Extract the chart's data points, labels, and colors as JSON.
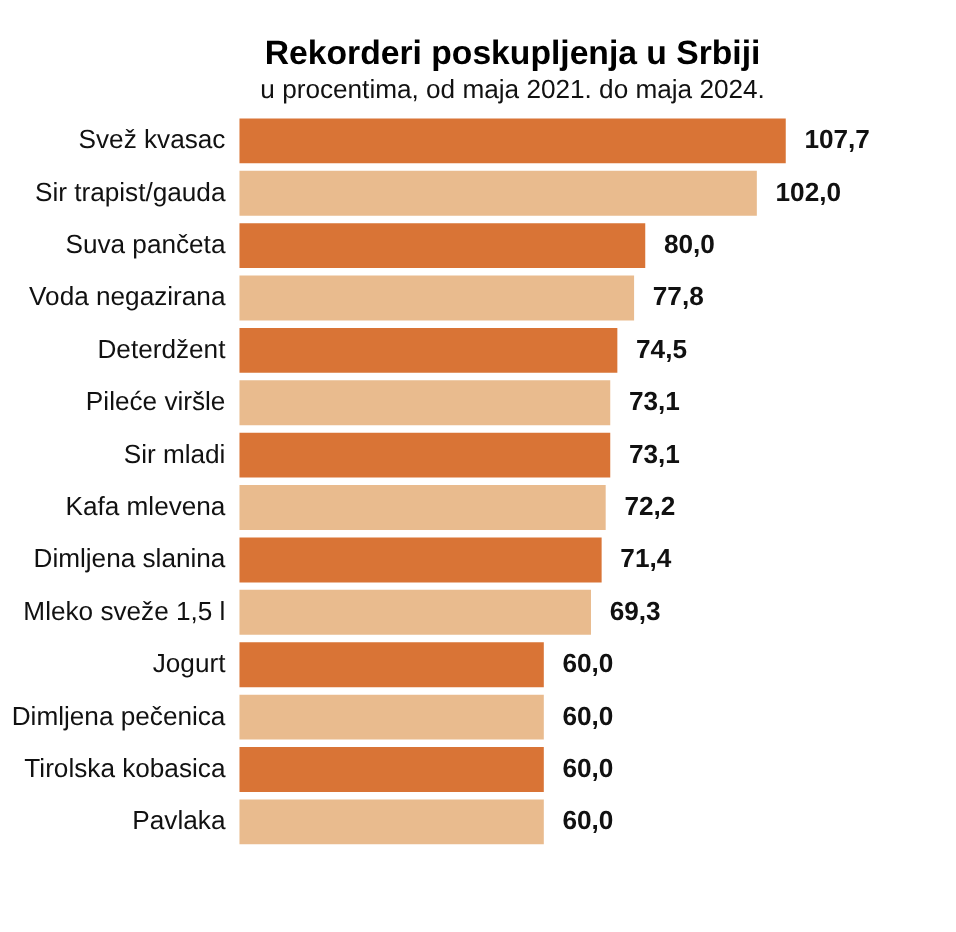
{
  "chart_data": {
    "type": "bar",
    "orientation": "horizontal",
    "title": "Rekorderi poskupljenja u Srbiji",
    "subtitle": "u procentima, od maja 2021. do maja 2024.",
    "categories": [
      "Svež kvasac",
      "Sir trapist/gauda",
      "Suva pančeta",
      "Voda negazirana",
      "Deterdžent",
      "Pileće viršle",
      "Sir mladi",
      "Kafa mlevena",
      "Dimljena slanina",
      "Mleko sveže 1,5 l",
      "Jogurt",
      "Dimljena pečenica",
      "Tirolska kobasica",
      "Pavlaka"
    ],
    "values": [
      107.7,
      102.0,
      80.0,
      77.8,
      74.5,
      73.1,
      73.1,
      72.2,
      71.4,
      69.3,
      60.0,
      60.0,
      60.0,
      60.0
    ],
    "value_labels": [
      "107,7",
      "102,0",
      "80,0",
      "77,8",
      "74,5",
      "73,1",
      "73,1",
      "72,2",
      "71,4",
      "69,3",
      "60,0",
      "60,0",
      "60,0",
      "60,0"
    ],
    "colors": [
      "#d97436",
      "#e9bb8e",
      "#d97436",
      "#e9bb8e",
      "#d97436",
      "#e9bb8e",
      "#d97436",
      "#e9bb8e",
      "#d97436",
      "#e9bb8e",
      "#d97436",
      "#e9bb8e",
      "#d97436",
      "#e9bb8e"
    ],
    "grid": false
  }
}
